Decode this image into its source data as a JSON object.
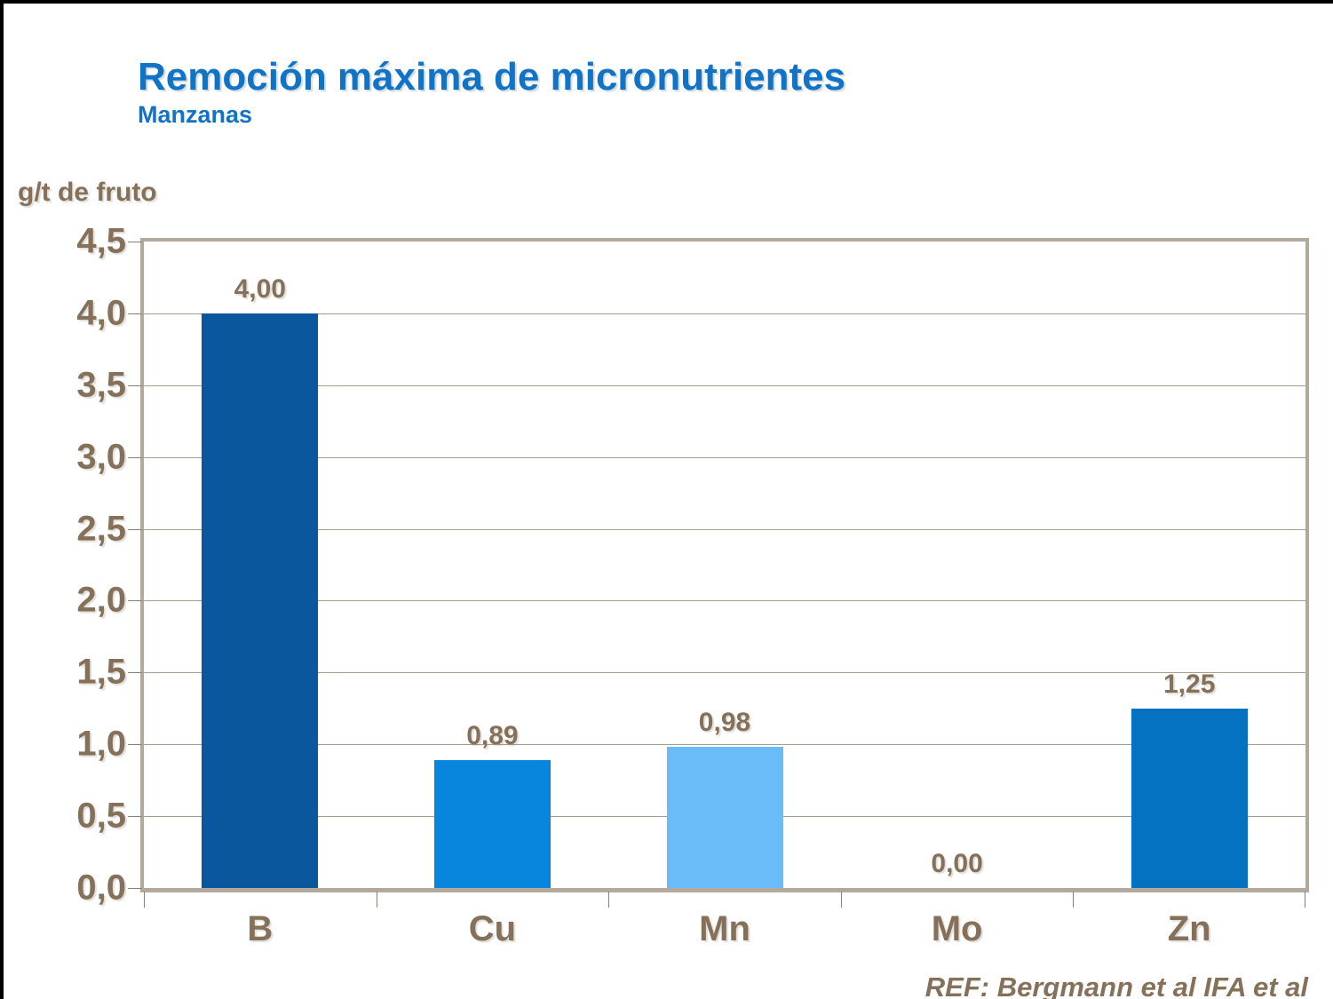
{
  "header": {
    "title": "Remoción máxima de micronutrientes",
    "subtitle": "Manzanas"
  },
  "chart_data": {
    "type": "bar",
    "title": "Remoción máxima de micronutrientes",
    "subtitle": "Manzanas",
    "ylabel": "g/t de fruto",
    "xlabel": "",
    "categories": [
      "B",
      "Cu",
      "Mn",
      "Mo",
      "Zn"
    ],
    "values": [
      4.0,
      0.89,
      0.98,
      0.0,
      1.25
    ],
    "value_labels": [
      "4,00",
      "0,89",
      "0,98",
      "0,00",
      "1,25"
    ],
    "bar_colors": [
      "#0b579e",
      "#0885dd",
      "#69bcf8",
      null,
      "#0571c1"
    ],
    "ylim": [
      0,
      4.5
    ],
    "ytick_step": 0.5,
    "ytick_values": [
      0.0,
      0.5,
      1.0,
      1.5,
      2.0,
      2.5,
      3.0,
      3.5,
      4.0,
      4.5
    ],
    "ytick_labels": [
      "0,0",
      "0,5",
      "1,0",
      "1,5",
      "2,0",
      "2,5",
      "3,0",
      "3,5",
      "4,0",
      "4,5"
    ],
    "grid": true,
    "legend": false
  },
  "footer": {
    "reference": "REF: Bergmann et al IFA et al"
  },
  "colors": {
    "title_blue": "#1173c5",
    "text_brown": "#85715a",
    "gridline": "#a79a87",
    "plot_frame": "#b2a89c",
    "page_border": "#000000",
    "background": "#ffffff"
  }
}
